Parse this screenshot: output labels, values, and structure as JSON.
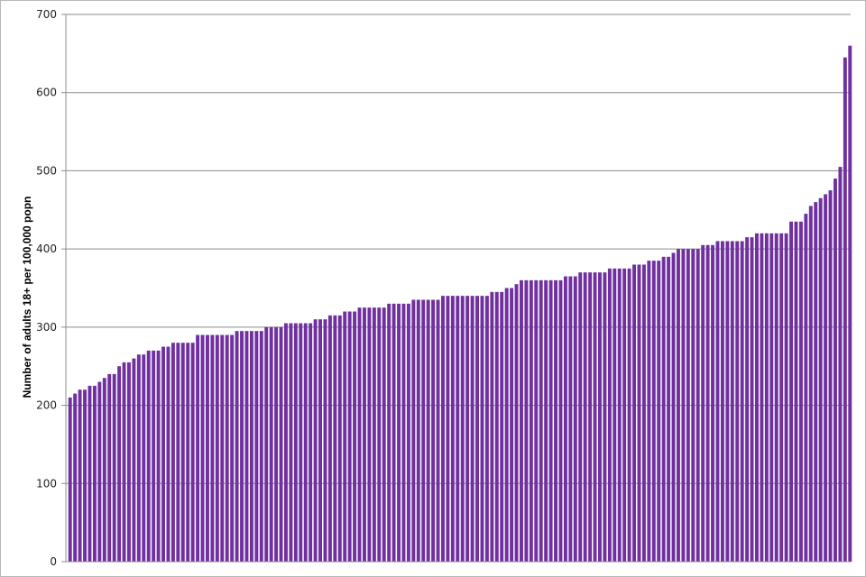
{
  "chart_data": {
    "type": "bar",
    "title": "",
    "xlabel": "",
    "ylabel": "Number of adults 18+ per 100,000 popn",
    "ylim": [
      0,
      700
    ],
    "yticks": [
      0,
      100,
      200,
      300,
      400,
      500,
      600,
      700
    ],
    "grid": true,
    "legend": "none",
    "bar_color": "#7030A0",
    "values": [
      210,
      215,
      220,
      220,
      225,
      225,
      230,
      235,
      240,
      240,
      250,
      255,
      255,
      260,
      265,
      265,
      270,
      270,
      270,
      275,
      275,
      280,
      280,
      280,
      280,
      280,
      290,
      290,
      290,
      290,
      290,
      290,
      290,
      290,
      295,
      295,
      295,
      295,
      295,
      295,
      300,
      300,
      300,
      300,
      305,
      305,
      305,
      305,
      305,
      305,
      310,
      310,
      310,
      315,
      315,
      315,
      320,
      320,
      320,
      325,
      325,
      325,
      325,
      325,
      325,
      330,
      330,
      330,
      330,
      330,
      335,
      335,
      335,
      335,
      335,
      335,
      340,
      340,
      340,
      340,
      340,
      340,
      340,
      340,
      340,
      340,
      345,
      345,
      345,
      350,
      350,
      355,
      360,
      360,
      360,
      360,
      360,
      360,
      360,
      360,
      360,
      365,
      365,
      365,
      370,
      370,
      370,
      370,
      370,
      370,
      375,
      375,
      375,
      375,
      375,
      380,
      380,
      380,
      385,
      385,
      385,
      390,
      390,
      395,
      400,
      400,
      400,
      400,
      400,
      405,
      405,
      405,
      410,
      410,
      410,
      410,
      410,
      410,
      415,
      415,
      420,
      420,
      420,
      420,
      420,
      420,
      420,
      435,
      435,
      435,
      445,
      455,
      460,
      465,
      470,
      475,
      490,
      505,
      645,
      660
    ]
  }
}
